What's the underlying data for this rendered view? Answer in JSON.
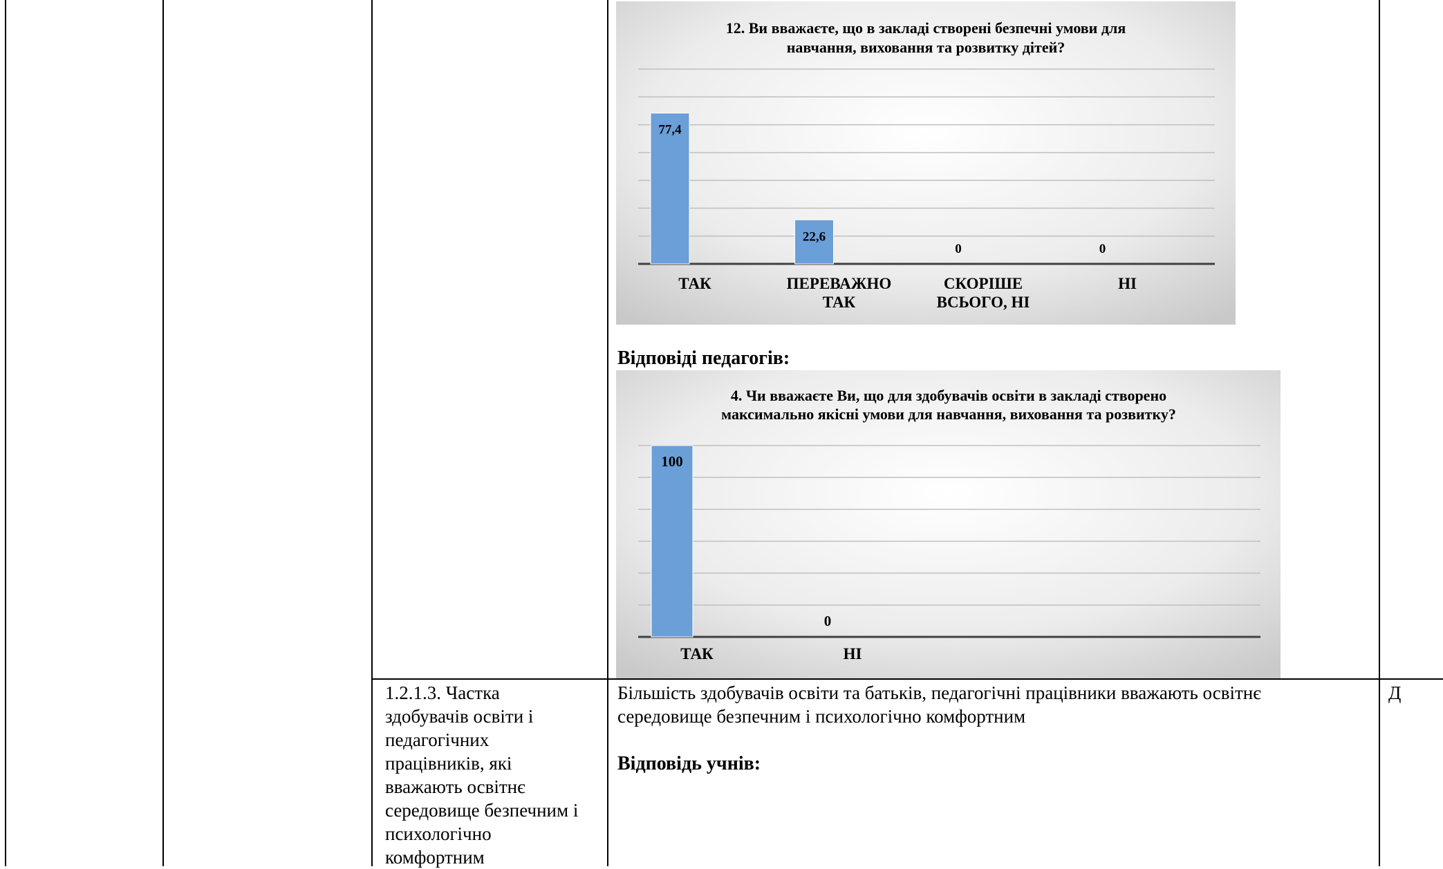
{
  "chart1": {
    "title_line1": "12. Ви вважаєте, що в закладі створені безпечні умови для",
    "title_line2": "навчання, виховання та розвитку дітей?",
    "chart_data": {
      "type": "bar",
      "categories": [
        "ТАК",
        "ПЕРЕВАЖНО ТАК",
        "СКОРІШЕ ВСЬОГО, НІ",
        "НІ"
      ],
      "category_lines": [
        [
          "ТАК"
        ],
        [
          "ПЕРЕВАЖНО",
          "ТАК"
        ],
        [
          "СКОРІШЕ",
          "ВСЬОГО, НІ"
        ],
        [
          "НІ"
        ]
      ],
      "values": [
        77.4,
        22.6,
        0,
        0
      ],
      "value_labels": [
        "77,4",
        "22,6",
        "0",
        "0"
      ],
      "ylim": [
        0,
        100
      ],
      "grid": true,
      "legend": "none",
      "bar_color": "#6a9fd8"
    }
  },
  "teachers_heading": "Відповіді педагогів:",
  "chart2": {
    "title_line1": "4. Чи вважаєте Ви, що для здобувачів освіти в закладі створено",
    "title_line2": "максимально якісні умови для навчання, виховання та розвитку?",
    "chart_data": {
      "type": "bar",
      "categories": [
        "ТАК",
        "НІ"
      ],
      "category_lines": [
        [
          "ТАК"
        ],
        [
          "НІ"
        ]
      ],
      "values": [
        100,
        0
      ],
      "value_labels": [
        "100",
        "0"
      ],
      "ylim": [
        0,
        100
      ],
      "grid": true,
      "legend": "none",
      "bar_color": "#6a9fd8"
    }
  },
  "row": {
    "indicator_lines": [
      "1.2.1.3. Частка",
      "здобувачів освіти і",
      "педагогічних",
      "працівників, які",
      "вважають освітнє",
      "середовище безпечним і",
      "психологічно",
      "комфортним"
    ],
    "description_line1": "Більшість здобувачів освіти та батьків, педагогічні працівники вважають  освітнє",
    "description_line2": "середовище безпечним і психологічно комфортним",
    "students_heading": "Відповідь учнів:",
    "level": "Д"
  }
}
